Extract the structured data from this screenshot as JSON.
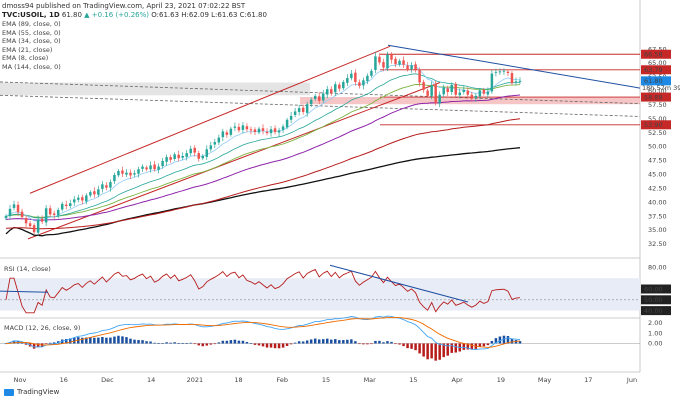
{
  "header": {
    "line1": "dmoss94 published on TradingView.com, April 23, 2021 07:02:22 BST",
    "symbol": "TVC:USOIL, 1D",
    "quote_main": " 61.80 ",
    "quote_change": "▲ +0.16 (+0.26%)",
    "quote_ohlc": " O:61.63 H:62.09 L:61.63 C:61.80"
  },
  "legend": [
    "EMA (89, close, 0)",
    "EMA (55, close, 0)",
    "EMA (34, close, 0)",
    "EMA (21, close)",
    "EMA (8, close)",
    "MA (144, close, 0)"
  ],
  "footer": {
    "brand": "TradingView"
  },
  "colors": {
    "up": "#26a69a",
    "down": "#ef5350",
    "red_line": "#c62828",
    "blue_line": "#1e4fa3",
    "ema8": "#90caf9",
    "ema21": "#26a69a",
    "ema34": "#7cb342",
    "ema55": "#8e24aa",
    "ema89": "#b71c1c",
    "ma144": "#111111",
    "band": "#f4b6b6",
    "rsi_bg": "#e8ecf6"
  },
  "chart_data": [
    {
      "type": "candlestick",
      "title": "TVC:USOIL, 1D",
      "ylim": [
        30.5,
        69.5
      ],
      "y_ticks": [
        32.5,
        35.0,
        37.5,
        40.0,
        42.5,
        45.0,
        47.5,
        50.0,
        52.5,
        55.0,
        57.5,
        60.0,
        62.5,
        65.0,
        67.5
      ],
      "x_tick_labels": [
        "Nov",
        "16",
        "Dec",
        "14",
        "2021",
        "18",
        "Feb",
        "15",
        "Mar",
        "15",
        "Apr",
        "19",
        "May",
        "17",
        "Jun"
      ],
      "price_labels": [
        {
          "value": 66.58,
          "text": "66.58",
          "bg": "#c62828"
        },
        {
          "value": 63.79,
          "text": "63.79",
          "bg": "#c62828"
        },
        {
          "value": 61.8,
          "text": "61.80",
          "bg": "#1e88e5"
        },
        {
          "value": 58.88,
          "text": "58.88",
          "bg": "#c62828"
        },
        {
          "value": 53.9,
          "text": "53.90",
          "bg": "#c62828"
        }
      ],
      "price_label_sub": "18h 57m 39s",
      "horizontal_levels": [
        66.58,
        63.79,
        58.88,
        53.9
      ],
      "support_band": [
        57.6,
        58.9
      ],
      "closes": [
        37.5,
        38.8,
        39.6,
        38.2,
        37.3,
        36.2,
        35.7,
        34.6,
        36.9,
        36.5,
        38.9,
        37.8,
        37.7,
        38.6,
        39.7,
        39.3,
        39.8,
        40.5,
        40.8,
        40.3,
        41.2,
        41.8,
        41.4,
        42.3,
        43.2,
        42.6,
        43.6,
        44.9,
        45.6,
        45.1,
        45.3,
        44.8,
        45.2,
        45.9,
        46.4,
        45.9,
        46.6,
        45.9,
        46.4,
        47.4,
        48.1,
        47.6,
        48.6,
        47.9,
        48.3,
        48.8,
        49.6,
        48.9,
        47.8,
        48.3,
        49.5,
        50.2,
        50.8,
        51.6,
        52.7,
        52.1,
        53.2,
        53.6,
        52.9,
        53.8,
        53.1,
        52.9,
        52.6,
        53.2,
        52.8,
        52.4,
        53.1,
        52.6,
        52.9,
        53.6,
        54.8,
        55.5,
        56.3,
        56.9,
        56.2,
        57.6,
        58.4,
        59.1,
        58.2,
        59.5,
        60.3,
        59.6,
        61.2,
        60.4,
        61.6,
        62.3,
        63.1,
        61.6,
        60.9,
        61.9,
        62.7,
        63.6,
        66.2,
        65.1,
        64.2,
        66.5,
        65.6,
        64.8,
        65.4,
        64.7,
        63.9,
        64.6,
        63.8,
        61.5,
        60.2,
        59.1,
        61.0,
        57.8,
        59.3,
        60.6,
        59.8,
        61.1,
        59.3,
        59.7,
        60.2,
        59.3,
        58.6,
        59.1,
        60.1,
        59.5,
        59.9,
        63.1,
        63.4,
        63.5,
        63.6,
        63.2,
        61.4,
        61.7,
        61.8
      ]
    },
    {
      "type": "line",
      "title": "RSI (14, close)",
      "ylim": [
        35,
        85
      ],
      "y_ticks": [
        40.0,
        50.0,
        60.0,
        80.0
      ],
      "value_labels": [
        {
          "value": 60.0,
          "text": "60.00"
        },
        {
          "value": 50.0,
          "text": "50.00"
        },
        {
          "value": 40.0,
          "text": "40.00"
        }
      ],
      "band": [
        40,
        70
      ]
    },
    {
      "type": "histogram",
      "title": "MACD (12, 26, close, 9)",
      "ylim": [
        -2.4,
        2.2
      ],
      "y_ticks": [
        0.0,
        1.0,
        2.0
      ],
      "value_labels": [
        {
          "value": 0.0,
          "text": "0.00"
        }
      ]
    }
  ]
}
